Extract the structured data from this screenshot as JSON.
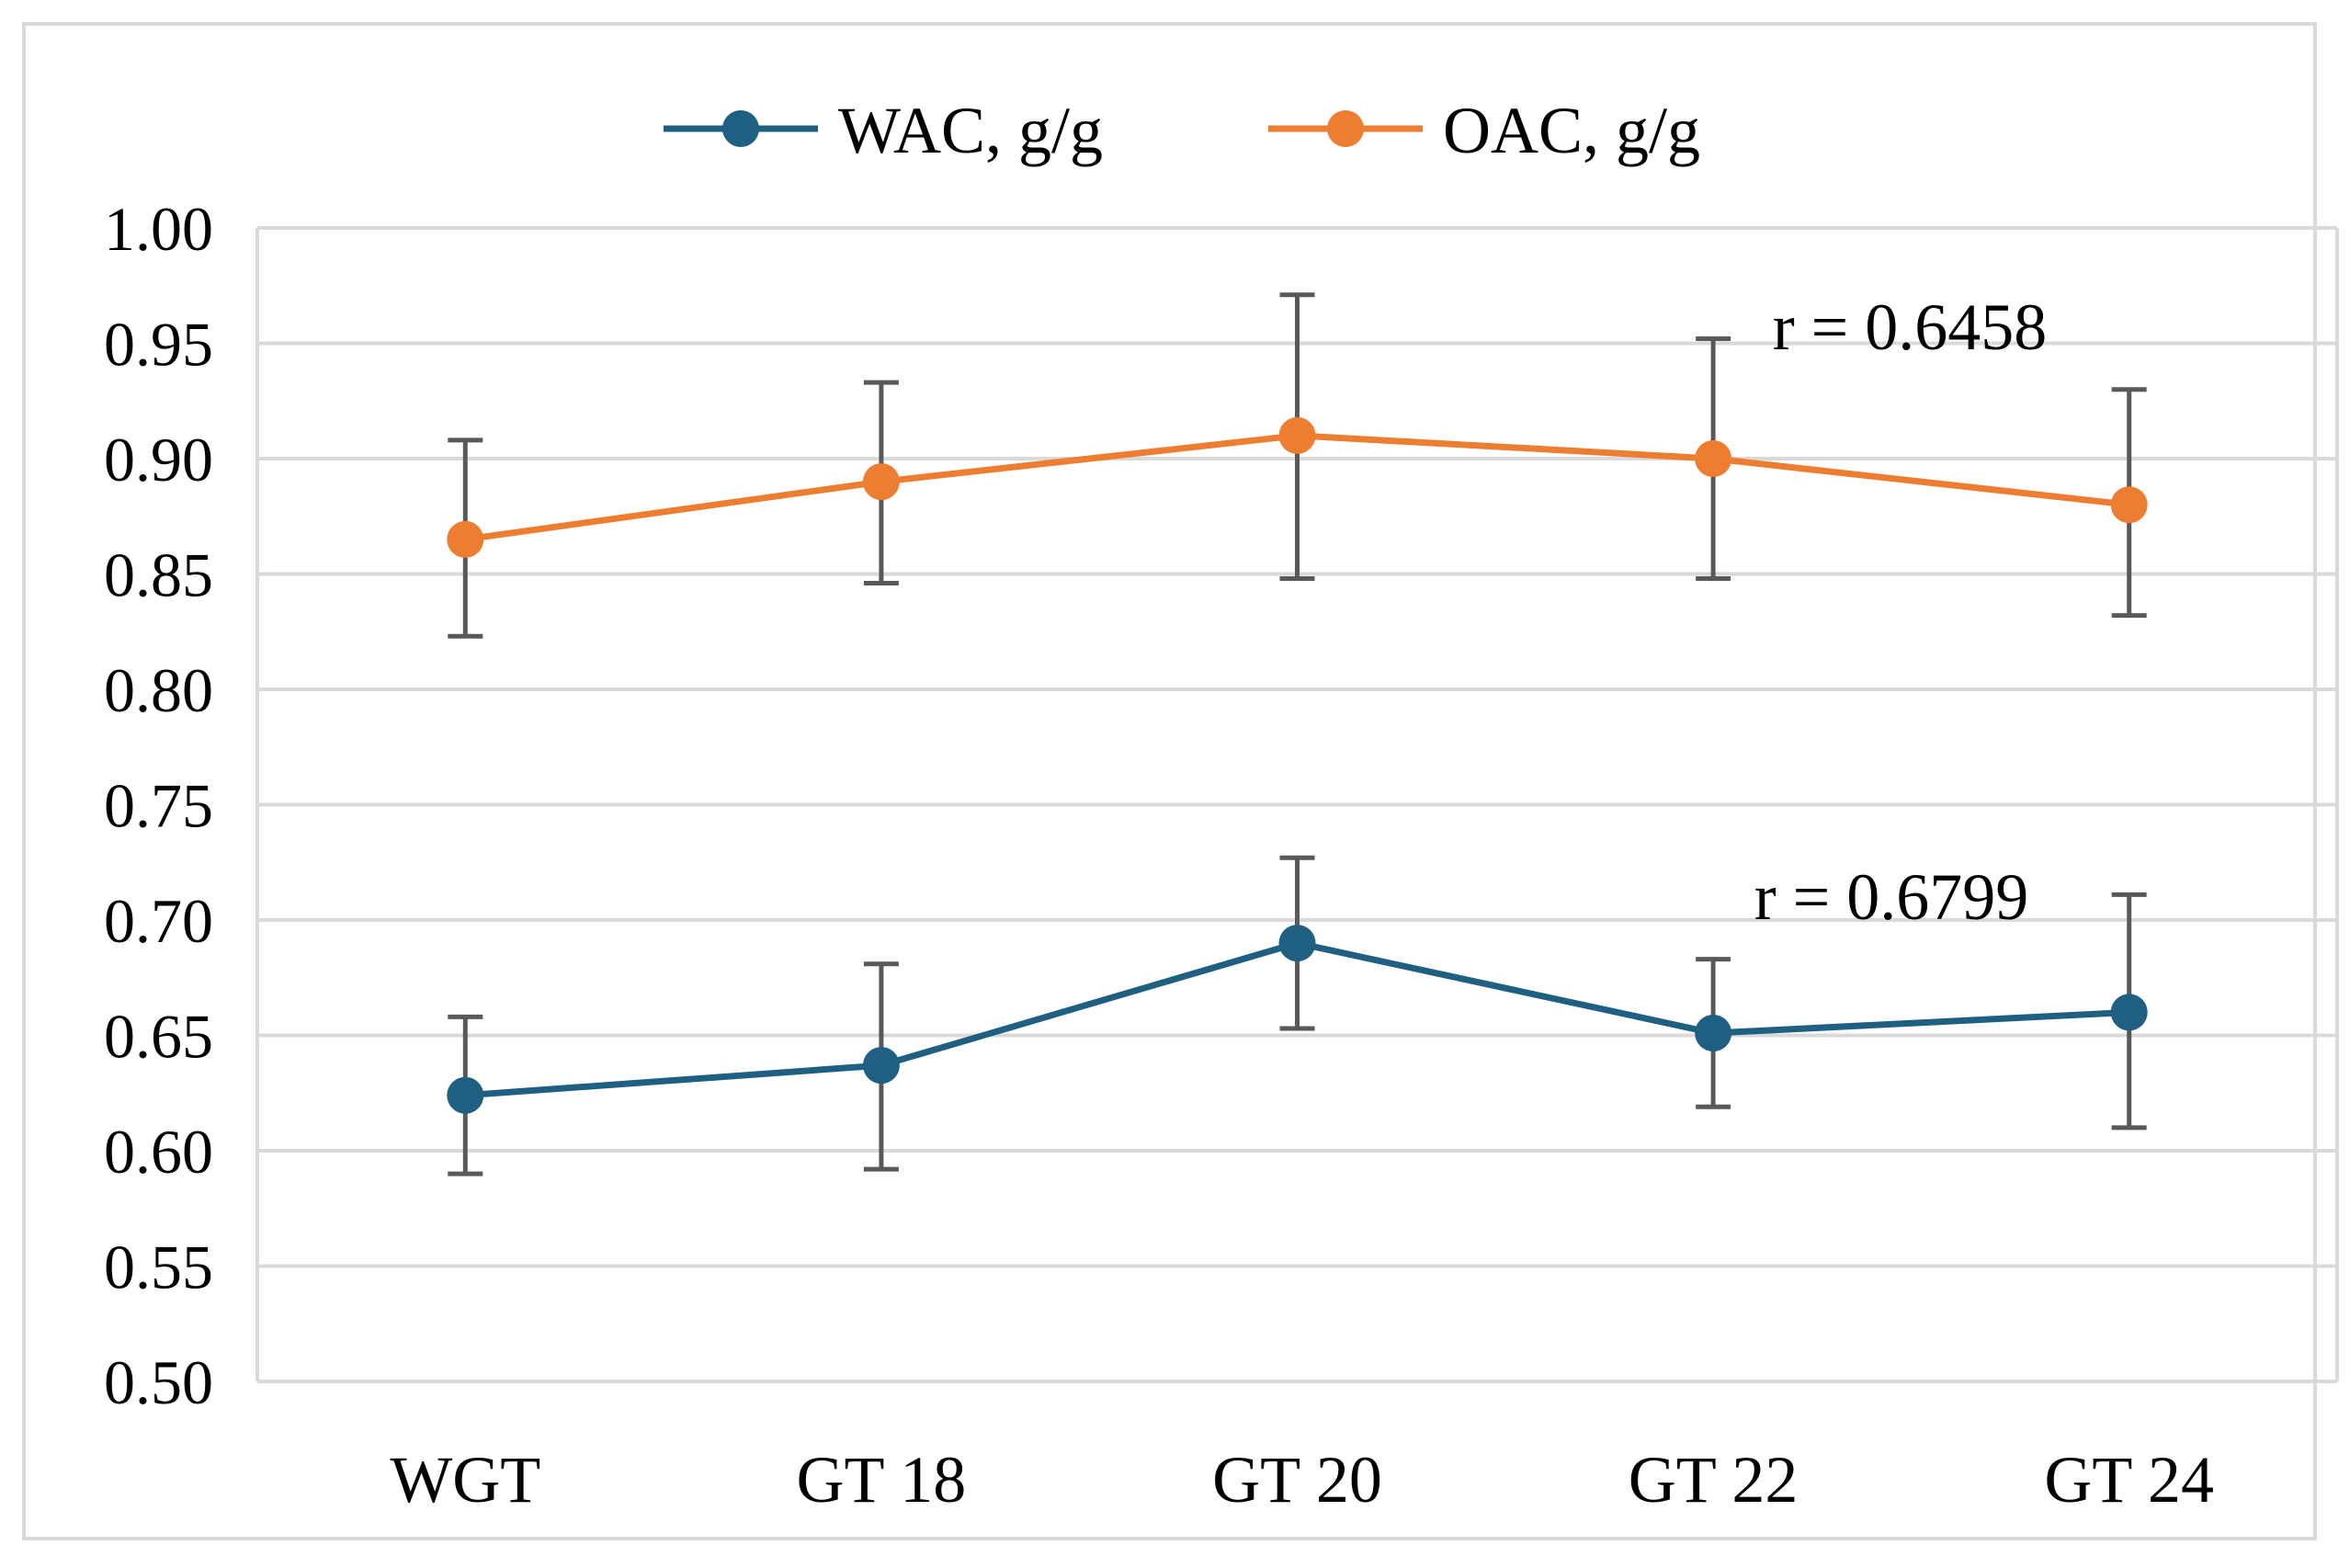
{
  "chart_data": {
    "type": "line",
    "title": "",
    "xlabel": "",
    "ylabel": "",
    "categories": [
      "WGT",
      "GT 18",
      "GT 20",
      "GT 22",
      "GT 24"
    ],
    "ylim": [
      0.5,
      1.0
    ],
    "ytick_step": 0.05,
    "ytick_labels": [
      "0.50",
      "0.55",
      "0.60",
      "0.65",
      "0.70",
      "0.75",
      "0.80",
      "0.85",
      "0.90",
      "0.95",
      "1.00"
    ],
    "grid": true,
    "legend_position": "top-center",
    "series": [
      {
        "name": "WAC, g/g",
        "color": "#1f5f82",
        "values": [
          0.624,
          0.637,
          0.69,
          0.651,
          0.66
        ],
        "error_low": [
          0.59,
          0.592,
          0.653,
          0.619,
          0.61
        ],
        "error_high": [
          0.658,
          0.681,
          0.727,
          0.683,
          0.711
        ]
      },
      {
        "name": "OAC, g/g",
        "color": "#ed7d31",
        "values": [
          0.865,
          0.89,
          0.91,
          0.9,
          0.88
        ],
        "error_low": [
          0.823,
          0.846,
          0.848,
          0.848,
          0.832
        ],
        "error_high": [
          0.908,
          0.933,
          0.971,
          0.952,
          0.93
        ]
      }
    ],
    "error_bar_color": "#595959",
    "annotations": [
      {
        "text": "r = 0.6458",
        "series": "OAC, g/g",
        "y": 0.957
      },
      {
        "text": "r = 0.6799",
        "series": "WAC, g/g",
        "y": 0.71
      }
    ]
  }
}
